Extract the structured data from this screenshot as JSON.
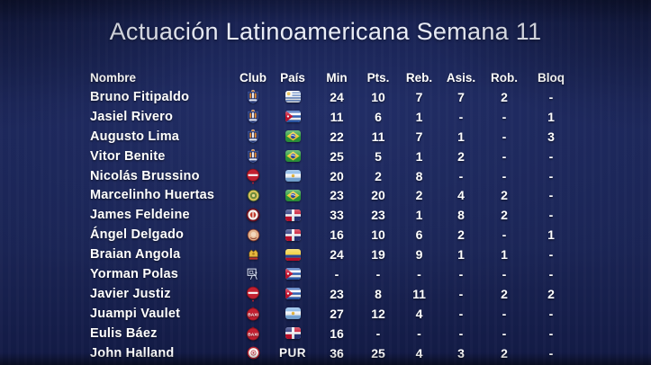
{
  "title": "Actuación Latinoamericana Semana 11",
  "colors": {
    "background": "#1a2454",
    "text": "#ffffff",
    "title_text": "#eaedf7",
    "logo_red": "#c32031",
    "logo_gold": "#e6b93f",
    "burgos_blue": "#24346e",
    "burgos_orange": "#e58a2f"
  },
  "table": {
    "headers": [
      "Nombre",
      "Club",
      "País",
      "Min",
      "Pts.",
      "Reb.",
      "Asis.",
      "Rob.",
      "Bloq"
    ],
    "rows": [
      {
        "name": "Bruno Fitipaldo",
        "club_logo": "burgos-shield",
        "country": "uy",
        "min": "24",
        "pts": "10",
        "reb": "7",
        "asis": "7",
        "rob": "2",
        "bloq": "-"
      },
      {
        "name": "Jasiel Rivero",
        "club_logo": "burgos-shield",
        "country": "cu",
        "min": "11",
        "pts": "6",
        "reb": "1",
        "asis": "-",
        "rob": "-",
        "bloq": "1"
      },
      {
        "name": "Augusto Lima",
        "club_logo": "burgos-shield",
        "country": "br",
        "min": "22",
        "pts": "11",
        "reb": "7",
        "asis": "1",
        "rob": "-",
        "bloq": "3"
      },
      {
        "name": "Vitor Benite",
        "club_logo": "burgos-shield",
        "country": "br",
        "min": "25",
        "pts": "5",
        "reb": "1",
        "asis": "2",
        "rob": "-",
        "bloq": "-"
      },
      {
        "name": "Nicolás Brussino",
        "club_logo": "red-circle-badge",
        "country": "ar",
        "min": "20",
        "pts": "2",
        "reb": "8",
        "asis": "-",
        "rob": "-",
        "bloq": "-"
      },
      {
        "name": "Marcelinho Huertas",
        "club_logo": "green-gold-round",
        "country": "br",
        "min": "23",
        "pts": "20",
        "reb": "2",
        "asis": "4",
        "rob": "2",
        "bloq": "-"
      },
      {
        "name": "James Feldeine",
        "club_logo": "darkred-ring-round",
        "country": "do",
        "min": "33",
        "pts": "23",
        "reb": "1",
        "asis": "8",
        "rob": "2",
        "bloq": "-"
      },
      {
        "name": "Ángel Delgado",
        "club_logo": "tan-round",
        "country": "do",
        "min": "16",
        "pts": "10",
        "reb": "6",
        "asis": "2",
        "rob": "-",
        "bloq": "1"
      },
      {
        "name": "Braian Angola",
        "club_logo": "gold-crest",
        "country": "co",
        "min": "24",
        "pts": "19",
        "reb": "9",
        "asis": "1",
        "rob": "1",
        "bloq": "-"
      },
      {
        "name": "Yorman Polas",
        "club_logo": "white-lineart",
        "country": "cu",
        "min": "-",
        "pts": "-",
        "reb": "-",
        "asis": "-",
        "rob": "-",
        "bloq": "-"
      },
      {
        "name": "Javier Justiz",
        "club_logo": "red-circle-badge",
        "country": "cu",
        "min": "23",
        "pts": "8",
        "reb": "11",
        "asis": "-",
        "rob": "2",
        "bloq": "2"
      },
      {
        "name": "Juampi Vaulet",
        "club_logo": "baxi-round",
        "country": "ar",
        "min": "27",
        "pts": "12",
        "reb": "4",
        "asis": "-",
        "rob": "-",
        "bloq": "-"
      },
      {
        "name": "Eulis Báez",
        "club_logo": "baxi-round",
        "country": "do",
        "min": "16",
        "pts": "-",
        "reb": "-",
        "asis": "-",
        "rob": "-",
        "bloq": "-"
      },
      {
        "name": "John Halland",
        "club_logo": "white-red-ring-round",
        "country": "PUR",
        "min": "36",
        "pts": "25",
        "reb": "4",
        "asis": "3",
        "rob": "2",
        "bloq": "-"
      }
    ]
  }
}
